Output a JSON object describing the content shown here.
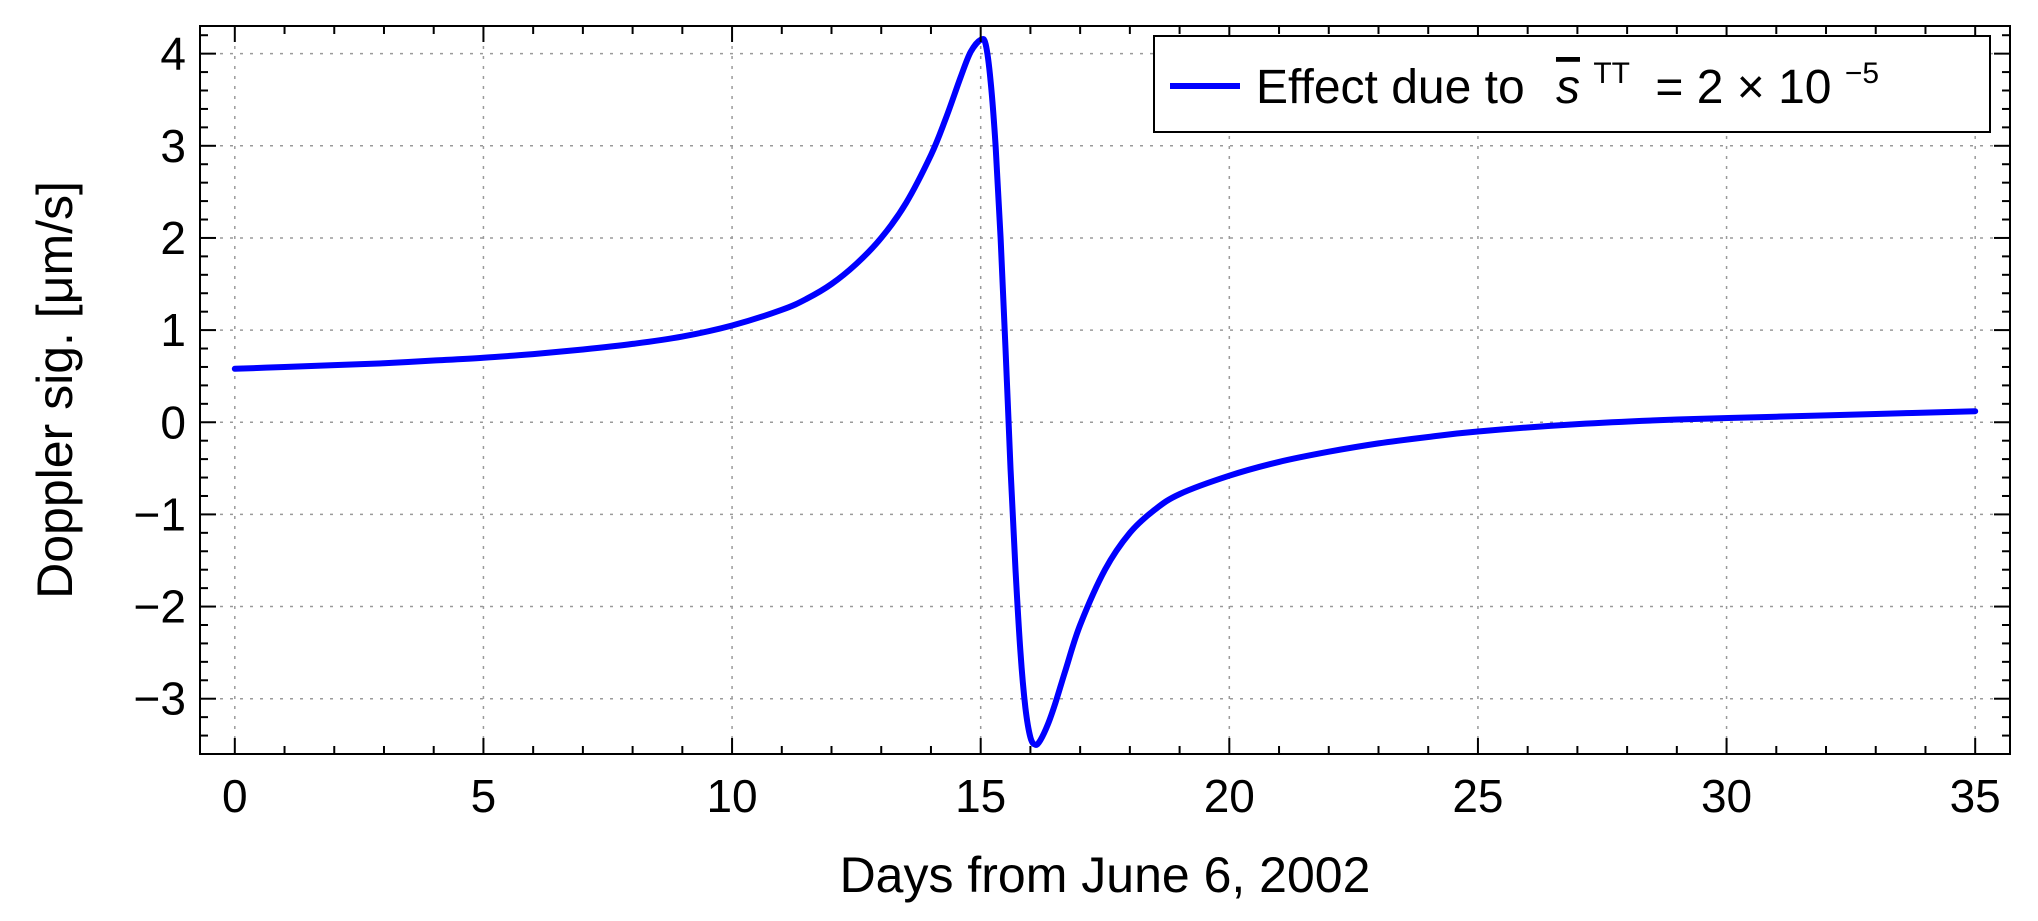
{
  "chart_data": {
    "type": "line",
    "xlabel": "Days from June 6, 2002",
    "ylabel": "Doppler sig. [μm/s]",
    "xlim": [
      -0.7,
      35.7
    ],
    "ylim": [
      -3.6,
      4.3
    ],
    "xticks": [
      0,
      5,
      10,
      15,
      20,
      25,
      30,
      35
    ],
    "yticks": [
      -3,
      -2,
      -1,
      0,
      1,
      2,
      3,
      4
    ],
    "xtick_labels": [
      "0",
      "5",
      "10",
      "15",
      "20",
      "25",
      "30",
      "35"
    ],
    "ytick_labels": [
      "−3",
      "−2",
      "−1",
      "0",
      "1",
      "2",
      "3",
      "4"
    ],
    "grid": true,
    "legend": {
      "placement": "top-right",
      "prefix": "Effect due to",
      "symbol": "s",
      "superscript": "TT",
      "equals": "= 2 × 10",
      "exponent": "−5"
    },
    "series": [
      {
        "name": "Effect due to s̄TT = 2 × 10−5",
        "color": "#0000ff",
        "x": [
          0,
          1,
          2,
          3,
          4,
          5,
          6,
          7,
          8,
          9,
          10,
          11,
          11.5,
          12,
          12.5,
          13,
          13.5,
          14,
          14.3,
          14.6,
          14.8,
          15.0,
          15.1,
          15.2,
          15.3,
          15.4,
          15.5,
          15.6,
          15.7,
          15.8,
          15.9,
          16.0,
          16.1,
          16.2,
          16.35,
          16.5,
          16.7,
          17.0,
          17.5,
          18.0,
          18.5,
          19.0,
          20.0,
          21.0,
          22.0,
          23.0,
          24.0,
          25.0,
          27.0,
          29.0,
          31.0,
          33.0,
          35.0
        ],
        "y": [
          0.58,
          0.6,
          0.62,
          0.64,
          0.67,
          0.7,
          0.74,
          0.79,
          0.85,
          0.93,
          1.05,
          1.22,
          1.34,
          1.5,
          1.72,
          2.0,
          2.38,
          2.9,
          3.3,
          3.75,
          4.02,
          4.15,
          4.1,
          3.7,
          3.0,
          2.0,
          0.8,
          -0.5,
          -1.6,
          -2.5,
          -3.1,
          -3.42,
          -3.5,
          -3.45,
          -3.28,
          -3.05,
          -2.7,
          -2.2,
          -1.6,
          -1.2,
          -0.95,
          -0.78,
          -0.58,
          -0.43,
          -0.32,
          -0.23,
          -0.16,
          -0.1,
          -0.02,
          0.03,
          0.06,
          0.09,
          0.12
        ]
      }
    ]
  }
}
